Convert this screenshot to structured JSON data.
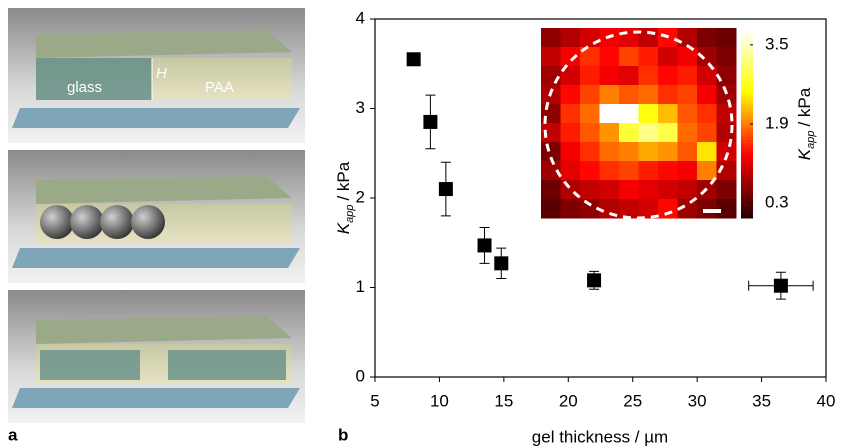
{
  "panel_a": {
    "panel_label": "a",
    "glass": "glass",
    "PAA": "PAA",
    "H": "H"
  },
  "chart_data": [
    {
      "type": "scatter",
      "panel_label": "b",
      "xlabel": "gel thickness / µm",
      "ylabel": {
        "symbol": "K",
        "subscript": "app",
        "unit": "/ kPa"
      },
      "x": [
        8,
        9.3,
        10.5,
        13.5,
        14.8,
        22,
        36.5
      ],
      "values": [
        3.55,
        2.85,
        2.1,
        1.47,
        1.27,
        1.08,
        1.02
      ],
      "yerr": [
        null,
        0.3,
        0.3,
        0.2,
        0.17,
        0.1,
        0.15
      ],
      "xerr": [
        null,
        null,
        null,
        null,
        null,
        null,
        2.5
      ],
      "color": "#000000",
      "xlim": [
        5,
        40
      ],
      "xticks": [
        5,
        10,
        15,
        20,
        25,
        30,
        35,
        40
      ],
      "ylim": [
        0,
        4
      ],
      "yticks": [
        0,
        1,
        2,
        3,
        4
      ]
    },
    {
      "type": "heatmap",
      "clim": [
        0,
        3.8
      ],
      "cbar_ticks": [
        3.5,
        1.9,
        0.3
      ],
      "cbar_label": {
        "symbol": "K",
        "subscript": "app",
        "unit": "/ kPa"
      },
      "values": [
        [
          0.6,
          0.8,
          1.0,
          1.2,
          1.1,
          0.9,
          1.3,
          0.8,
          0.5,
          0.4
        ],
        [
          0.9,
          1.2,
          1.5,
          1.3,
          1.6,
          1.4,
          1.0,
          1.2,
          0.7,
          0.5
        ],
        [
          0.7,
          1.0,
          1.4,
          1.2,
          1.1,
          1.5,
          1.3,
          1.4,
          1.0,
          0.6
        ],
        [
          0.8,
          1.3,
          1.6,
          1.9,
          1.7,
          1.8,
          1.5,
          1.6,
          1.2,
          0.7
        ],
        [
          0.6,
          1.5,
          1.8,
          3.8,
          3.8,
          2.6,
          2.2,
          1.7,
          1.5,
          0.9
        ],
        [
          0.9,
          1.4,
          1.7,
          2.0,
          2.8,
          3.2,
          2.9,
          1.8,
          1.6,
          0.8
        ],
        [
          0.5,
          1.2,
          1.5,
          1.8,
          1.9,
          2.1,
          2.0,
          1.7,
          2.4,
          1.0
        ],
        [
          0.7,
          1.1,
          1.3,
          1.5,
          1.6,
          1.4,
          1.3,
          1.2,
          1.9,
          0.8
        ],
        [
          0.4,
          0.8,
          0.9,
          1.0,
          1.2,
          1.1,
          1.0,
          0.9,
          0.7,
          0.5
        ],
        [
          0.3,
          0.5,
          0.6,
          0.8,
          0.9,
          1.0,
          1.3,
          0.7,
          0.5,
          0.3
        ]
      ]
    }
  ]
}
